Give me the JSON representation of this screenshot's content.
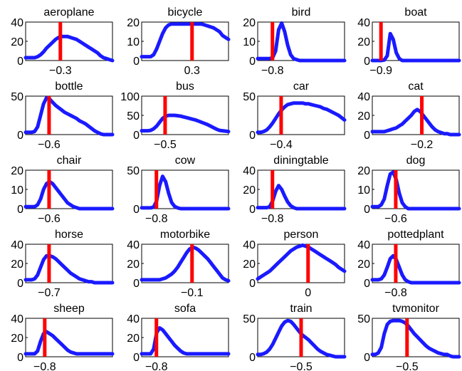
{
  "figure": {
    "colors": {
      "curve": "#1a1aff",
      "marker": "#ff0000",
      "axes": "#000000",
      "background": "#ffffff"
    }
  },
  "chart_data": [
    {
      "type": "line",
      "title": "aeroplane",
      "ylim": [
        0,
        40
      ],
      "yticks": [
        0,
        20,
        40
      ],
      "xticks": [
        {
          "pos": 0.4,
          "label": "−0.3"
        }
      ],
      "marker": 0.4,
      "y": [
        3,
        3,
        3,
        3,
        4,
        6,
        9,
        13,
        16,
        19,
        22,
        24,
        25,
        25,
        25,
        24,
        23,
        22,
        20,
        18,
        16,
        14,
        12,
        10,
        8,
        5,
        3,
        2,
        1,
        0
      ]
    },
    {
      "type": "line",
      "title": "bicycle",
      "ylim": [
        0,
        20
      ],
      "yticks": [
        0,
        10,
        20
      ],
      "xticks": [
        {
          "pos": 0.58,
          "label": "0.3"
        }
      ],
      "marker": 0.58,
      "y": [
        2,
        2,
        2,
        2,
        3,
        6,
        10,
        14,
        17,
        18.5,
        19,
        19,
        19,
        19,
        19,
        19,
        19,
        19,
        19,
        19,
        19,
        18.5,
        18,
        17.5,
        17,
        16,
        15,
        13,
        12,
        11
      ]
    },
    {
      "type": "line",
      "title": "bird",
      "ylim": [
        0,
        20
      ],
      "yticks": [
        0,
        10,
        20
      ],
      "xticks": [
        {
          "pos": 0.17,
          "label": "−0.8"
        }
      ],
      "marker": 0.17,
      "y": [
        1,
        1,
        1,
        1,
        1,
        1.5,
        5,
        16,
        19.5,
        15,
        8,
        3,
        1,
        0.5,
        0,
        0,
        0,
        0,
        0,
        0,
        0,
        0,
        0,
        0,
        0,
        0,
        0,
        0,
        0,
        0
      ]
    },
    {
      "type": "line",
      "title": "boat",
      "ylim": [
        0,
        40
      ],
      "yticks": [
        0,
        20,
        40
      ],
      "xticks": [
        {
          "pos": 0.1,
          "label": "−0.9"
        }
      ],
      "marker": 0.1,
      "y": [
        0,
        0,
        0,
        0,
        0.5,
        5,
        28,
        22,
        8,
        2,
        0,
        0,
        0,
        0,
        0,
        0,
        0,
        0,
        0,
        0,
        0,
        0,
        0,
        0,
        0,
        0,
        0,
        0,
        0,
        0
      ]
    },
    {
      "type": "line",
      "title": "bottle",
      "ylim": [
        0,
        50
      ],
      "yticks": [
        0,
        50
      ],
      "xticks": [
        {
          "pos": 0.27,
          "label": "−0.6"
        }
      ],
      "marker": 0.27,
      "y": [
        3,
        3,
        3,
        4,
        10,
        25,
        40,
        48,
        46,
        42,
        38,
        35,
        32,
        29,
        27,
        25,
        23,
        21,
        18,
        16,
        14,
        11,
        8,
        5,
        3,
        1,
        0,
        0,
        0,
        0
      ]
    },
    {
      "type": "line",
      "title": "bus",
      "ylim": [
        0,
        100
      ],
      "yticks": [
        0,
        50,
        100
      ],
      "xticks": [
        {
          "pos": 0.27,
          "label": "−0.5"
        }
      ],
      "marker": 0.27,
      "y": [
        10,
        10,
        10,
        11,
        15,
        22,
        32,
        42,
        48,
        50,
        50,
        50,
        49,
        48,
        46,
        44,
        42,
        40,
        38,
        35,
        32,
        29,
        26,
        22,
        18,
        14,
        11,
        10,
        9,
        8
      ]
    },
    {
      "type": "line",
      "title": "car",
      "ylim": [
        0,
        50
      ],
      "yticks": [
        0,
        50
      ],
      "xticks": [
        {
          "pos": 0.27,
          "label": "−0.4"
        }
      ],
      "marker": 0.27,
      "y": [
        3,
        3,
        4,
        6,
        10,
        15,
        21,
        27,
        32,
        36,
        39,
        40,
        41,
        41,
        41,
        41,
        40,
        40,
        39,
        38,
        37,
        36,
        34,
        33,
        31,
        29,
        27,
        25,
        22,
        19
      ]
    },
    {
      "type": "line",
      "title": "cat",
      "ylim": [
        0,
        40
      ],
      "yticks": [
        0,
        20,
        40
      ],
      "xticks": [
        {
          "pos": 0.57,
          "label": "−0.2"
        }
      ],
      "marker": 0.57,
      "y": [
        3,
        3,
        3,
        3,
        3,
        4,
        5,
        6,
        7,
        9,
        11,
        14,
        17,
        20,
        24,
        26,
        24,
        20,
        16,
        12,
        8,
        5,
        3,
        2,
        1,
        1,
        0,
        0,
        0,
        0
      ]
    },
    {
      "type": "line",
      "title": "chair",
      "ylim": [
        0,
        20
      ],
      "yticks": [
        0,
        10,
        20
      ],
      "xticks": [
        {
          "pos": 0.27,
          "label": "−0.6"
        }
      ],
      "marker": 0.27,
      "y": [
        1,
        1,
        1,
        1,
        2,
        5,
        10,
        13,
        14,
        13,
        11,
        9,
        7,
        5,
        3,
        2,
        1,
        0.5,
        0,
        0,
        0,
        0,
        0,
        0,
        0,
        0,
        0,
        0,
        0,
        0
      ]
    },
    {
      "type": "line",
      "title": "cow",
      "ylim": [
        0,
        50
      ],
      "yticks": [
        0,
        50
      ],
      "xticks": [
        {
          "pos": 0.17,
          "label": "−0.8"
        }
      ],
      "marker": 0.17,
      "y": [
        1,
        1,
        1,
        1,
        2,
        10,
        30,
        42,
        35,
        20,
        8,
        3,
        1,
        0,
        0,
        0,
        0,
        0,
        0,
        0,
        0,
        0,
        0,
        0,
        0,
        0,
        0,
        0,
        0,
        0
      ]
    },
    {
      "type": "line",
      "title": "diningtable",
      "ylim": [
        0,
        40
      ],
      "yticks": [
        0,
        20,
        40
      ],
      "xticks": [
        {
          "pos": 0.17,
          "label": "−0.8"
        }
      ],
      "marker": 0.17,
      "y": [
        1,
        1,
        1,
        1,
        2,
        8,
        18,
        24,
        20,
        13,
        7,
        3,
        1,
        0,
        0,
        0,
        0,
        0,
        0,
        0,
        0,
        0,
        0,
        0,
        0,
        0,
        0,
        0,
        0,
        0
      ]
    },
    {
      "type": "line",
      "title": "dog",
      "ylim": [
        0,
        20
      ],
      "yticks": [
        0,
        10,
        20
      ],
      "xticks": [
        {
          "pos": 0.27,
          "label": "−0.6"
        }
      ],
      "marker": 0.27,
      "y": [
        1,
        1,
        1,
        2,
        5,
        12,
        18,
        19,
        15,
        8,
        3,
        1,
        0,
        0,
        0,
        0,
        0,
        0,
        0,
        0,
        0,
        0,
        0,
        0,
        0,
        0,
        0,
        0,
        0,
        0
      ]
    },
    {
      "type": "line",
      "title": "horse",
      "ylim": [
        0,
        40
      ],
      "yticks": [
        0,
        20,
        40
      ],
      "xticks": [
        {
          "pos": 0.27,
          "label": "−0.7"
        }
      ],
      "marker": 0.27,
      "y": [
        3,
        3,
        3,
        4,
        8,
        16,
        24,
        28,
        28,
        27,
        25,
        22,
        19,
        16,
        13,
        10,
        8,
        6,
        4,
        3,
        2,
        1,
        1,
        0,
        0,
        0,
        0,
        0,
        0,
        0
      ]
    },
    {
      "type": "line",
      "title": "motorbike",
      "ylim": [
        0,
        40
      ],
      "yticks": [
        0,
        20,
        40
      ],
      "xticks": [
        {
          "pos": 0.58,
          "label": "−0.1"
        }
      ],
      "marker": 0.58,
      "y": [
        3,
        3,
        3,
        3,
        3,
        3,
        3,
        4,
        5,
        7,
        9,
        12,
        16,
        21,
        26,
        31,
        35,
        37,
        36,
        34,
        31,
        28,
        25,
        21,
        17,
        13,
        9,
        5,
        3,
        2
      ]
    },
    {
      "type": "line",
      "title": "person",
      "ylim": [
        0,
        40
      ],
      "yticks": [
        0,
        20,
        40
      ],
      "xticks": [
        {
          "pos": 0.58,
          "label": "0"
        }
      ],
      "marker": 0.58,
      "y": [
        4,
        6,
        8,
        10,
        12,
        15,
        18,
        21,
        24,
        27,
        30,
        33,
        35,
        37,
        38,
        39,
        38,
        37,
        35,
        33,
        31,
        29,
        27,
        25,
        23,
        21,
        19,
        16,
        14,
        12
      ]
    },
    {
      "type": "line",
      "title": "pottedplant",
      "ylim": [
        0,
        40
      ],
      "yticks": [
        0,
        20,
        40
      ],
      "xticks": [
        {
          "pos": 0.27,
          "label": "−0.8"
        }
      ],
      "marker": 0.27,
      "y": [
        3,
        3,
        3,
        4,
        8,
        16,
        25,
        28,
        24,
        16,
        8,
        3,
        1,
        0,
        0,
        0,
        0,
        0,
        0,
        0,
        0,
        0,
        0,
        0,
        0,
        0,
        0,
        0,
        0,
        0
      ]
    },
    {
      "type": "line",
      "title": "sheep",
      "ylim": [
        0,
        40
      ],
      "yticks": [
        0,
        20,
        40
      ],
      "xticks": [
        {
          "pos": 0.22,
          "label": "−0.8"
        }
      ],
      "marker": 0.22,
      "y": [
        3,
        3,
        3,
        3,
        6,
        16,
        24,
        26,
        24,
        22,
        19,
        16,
        13,
        10,
        7,
        5,
        4,
        3,
        3,
        3,
        3,
        3,
        3,
        3,
        3,
        3,
        3,
        3,
        3,
        3
      ]
    },
    {
      "type": "line",
      "title": "sofa",
      "ylim": [
        0,
        40
      ],
      "yticks": [
        0,
        20,
        40
      ],
      "xticks": [
        {
          "pos": 0.17,
          "label": "−0.8"
        }
      ],
      "marker": 0.17,
      "y": [
        3,
        3,
        3,
        3,
        8,
        25,
        30,
        28,
        24,
        20,
        16,
        12,
        9,
        6,
        4,
        3,
        3,
        3,
        3,
        3,
        3,
        3,
        3,
        3,
        3,
        3,
        3,
        3,
        3,
        3
      ]
    },
    {
      "type": "line",
      "title": "train",
      "ylim": [
        0,
        50
      ],
      "yticks": [
        0,
        50
      ],
      "xticks": [
        {
          "pos": 0.5,
          "label": "−0.5"
        }
      ],
      "marker": 0.5,
      "y": [
        3,
        3,
        4,
        6,
        10,
        16,
        24,
        32,
        40,
        45,
        47,
        46,
        42,
        37,
        32,
        28,
        25,
        22,
        18,
        14,
        10,
        7,
        5,
        3,
        2,
        1,
        0,
        0,
        0,
        0
      ]
    },
    {
      "type": "line",
      "title": "tvmonitor",
      "ylim": [
        0,
        50
      ],
      "yticks": [
        0,
        50
      ],
      "xticks": [
        {
          "pos": 0.4,
          "label": "−0.5"
        }
      ],
      "marker": 0.4,
      "y": [
        3,
        3,
        5,
        12,
        30,
        42,
        46,
        47,
        47,
        47,
        46,
        44,
        40,
        35,
        30,
        26,
        22,
        18,
        14,
        11,
        9,
        7,
        5,
        4,
        3,
        3,
        1,
        0,
        0,
        0
      ]
    }
  ]
}
